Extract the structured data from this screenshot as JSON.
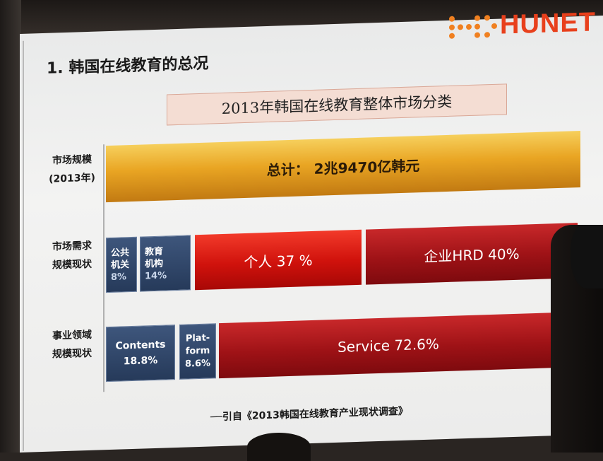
{
  "slide": {
    "title": "1. 韩国在线教育的总况",
    "logo_text": "HUNET",
    "chart_title": "2013年韩国在线教育整体市场分类",
    "source": "──引自《2013韩国在线教育产业现状调查》"
  },
  "rows": [
    {
      "label_line1": "市场规模",
      "label_line2": "(2013年)"
    },
    {
      "label_line1": "市场需求",
      "label_line2": "规模现状"
    },
    {
      "label_line1": "事业领域",
      "label_line2": "规模现状"
    }
  ],
  "bars": {
    "total": "总计： 2兆9470亿韩元",
    "public_line1": "公共",
    "public_line2": "机关",
    "public_pct": "8%",
    "edu_line1": "教育",
    "edu_line2": "机构",
    "edu_pct": "14%",
    "personal": "个人 37 %",
    "corporate": "企业HRD 40%",
    "contents_name": "Contents",
    "contents_pct": "18.8%",
    "platform_line1": "Plat-",
    "platform_line2": "form",
    "platform_pct": "8.6%",
    "service": "Service  72.6%"
  },
  "colors": {
    "gold": "#e9a523",
    "navy": "#263a5a",
    "red": "#d0120c",
    "dark_red": "#9e1216",
    "logo_orange": "#e8401c"
  }
}
